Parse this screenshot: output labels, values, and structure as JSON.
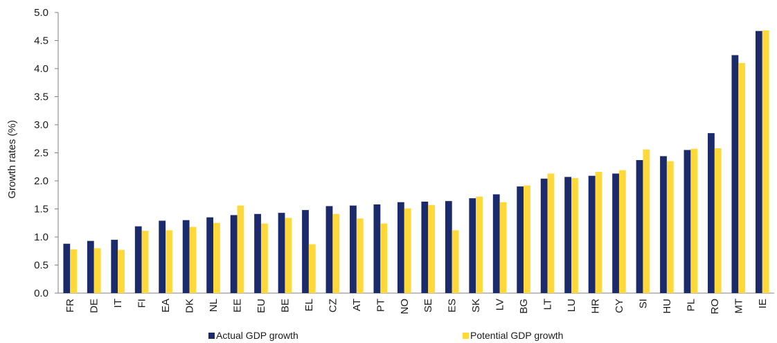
{
  "chart_data": {
    "type": "bar",
    "title": "",
    "xlabel": "",
    "ylabel": "Growth rates (%)",
    "ylim": [
      0,
      5.0
    ],
    "ytick_step": 0.5,
    "yticks": [
      "0.0",
      "0.5",
      "1.0",
      "1.5",
      "2.0",
      "2.5",
      "3.0",
      "3.5",
      "4.0",
      "4.5",
      "5.0"
    ],
    "grid": false,
    "legend_position": "bottom",
    "categories": [
      "FR",
      "DE",
      "IT",
      "FI",
      "EA",
      "DK",
      "NL",
      "EE",
      "EU",
      "BE",
      "EL",
      "CZ",
      "AT",
      "PT",
      "NO",
      "SE",
      "ES",
      "SK",
      "LV",
      "BG",
      "LT",
      "LU",
      "HR",
      "CY",
      "SI",
      "HU",
      "PL",
      "RO",
      "MT",
      "IE"
    ],
    "series": [
      {
        "name": "Actual GDP growth",
        "color": "#1b2a6b",
        "values": [
          0.88,
          0.93,
          0.95,
          1.19,
          1.29,
          1.3,
          1.35,
          1.39,
          1.41,
          1.43,
          1.48,
          1.55,
          1.56,
          1.58,
          1.62,
          1.63,
          1.64,
          1.69,
          1.76,
          1.9,
          2.04,
          2.07,
          2.09,
          2.13,
          2.37,
          2.44,
          2.55,
          2.85,
          4.24,
          4.67
        ]
      },
      {
        "name": "Potential GDP growth",
        "color": "#ffd83a",
        "values": [
          0.78,
          0.8,
          0.77,
          1.11,
          1.12,
          1.18,
          1.25,
          1.56,
          1.24,
          1.34,
          0.87,
          1.41,
          1.33,
          1.24,
          1.51,
          1.57,
          1.12,
          1.72,
          1.62,
          1.92,
          2.13,
          2.05,
          2.16,
          2.19,
          2.56,
          2.35,
          2.57,
          2.58,
          4.1,
          4.68
        ]
      }
    ]
  }
}
